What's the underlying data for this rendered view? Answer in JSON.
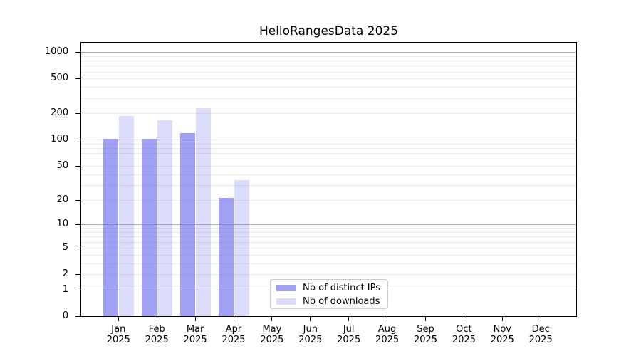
{
  "title": "HelloRangesData 2025",
  "colors": {
    "ips_bar": "rgba(90,90,235,0.57)",
    "downloads_bar": "rgba(90,90,235,0.21)",
    "major_grid": "#b0b0b0",
    "minor_grid": "#ececec",
    "axis": "#000000",
    "legend_border": "#cccccc",
    "background": "#ffffff"
  },
  "chart_data": {
    "type": "bar",
    "title": "HelloRangesData 2025",
    "categories": [
      "Jan 2025",
      "Feb 2025",
      "Mar 2025",
      "Apr 2025",
      "May 2025",
      "Jun 2025",
      "Jul 2025",
      "Aug 2025",
      "Sep 2025",
      "Oct 2025",
      "Nov 2025",
      "Dec 2025"
    ],
    "months": [
      "Jan",
      "Feb",
      "Mar",
      "Apr",
      "May",
      "Jun",
      "Jul",
      "Aug",
      "Sep",
      "Oct",
      "Nov",
      "Dec"
    ],
    "year": "2025",
    "series": [
      {
        "name": "Nb of distinct IPs",
        "color": "rgba(90,90,235,0.57)",
        "values": [
          103,
          103,
          120,
          21,
          0,
          0,
          0,
          0,
          0,
          0,
          0,
          0
        ]
      },
      {
        "name": "Nb of downloads",
        "color": "rgba(90,90,235,0.21)",
        "values": [
          186,
          168,
          232,
          34,
          0,
          0,
          0,
          0,
          0,
          0,
          0,
          0
        ]
      }
    ],
    "xlabel": "",
    "ylabel": "",
    "yscale": "log1p",
    "ylim": [
      0,
      1280
    ],
    "yticks": [
      0,
      1,
      2,
      5,
      10,
      20,
      50,
      100,
      200,
      500,
      1000
    ],
    "grid": true,
    "legend_position": "lower center"
  }
}
